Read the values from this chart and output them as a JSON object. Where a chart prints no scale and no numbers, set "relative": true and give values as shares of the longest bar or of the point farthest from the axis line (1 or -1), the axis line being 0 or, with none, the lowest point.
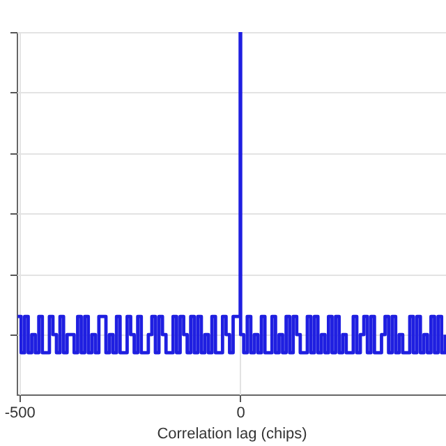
{
  "chart_data": {
    "type": "step",
    "xlabel": "Correlation lag (chips)",
    "relative": true,
    "grid": true,
    "xlim": [
      -506,
      466
    ],
    "xticks": [
      -500,
      0
    ],
    "x": [
      -504,
      -496,
      -488,
      -480,
      -472,
      -464,
      -456,
      -448,
      -440,
      -432,
      -424,
      -416,
      -408,
      -400,
      -392,
      -384,
      -376,
      -368,
      -360,
      -352,
      -344,
      -336,
      -328,
      -320,
      -312,
      -304,
      -296,
      -288,
      -280,
      -272,
      -264,
      -256,
      -248,
      -240,
      -232,
      -224,
      -216,
      -208,
      -200,
      -192,
      -184,
      -176,
      -168,
      -160,
      -152,
      -144,
      -136,
      -128,
      -120,
      -112,
      -104,
      -96,
      -88,
      -80,
      -72,
      -64,
      -56,
      -48,
      -40,
      -32,
      -24,
      -16,
      -8,
      0,
      1,
      8,
      16,
      24,
      32,
      40,
      48,
      56,
      64,
      72,
      80,
      88,
      96,
      104,
      112,
      120,
      128,
      136,
      144,
      152,
      160,
      168,
      176,
      184,
      192,
      200,
      208,
      216,
      224,
      232,
      240,
      248,
      256,
      264,
      272,
      280,
      288,
      296,
      304,
      312,
      320,
      328,
      336,
      344,
      352,
      360,
      368,
      376,
      384,
      392,
      400,
      408,
      416,
      424,
      432,
      440,
      448,
      456,
      464
    ],
    "series": [
      {
        "color": "#1f1fe0",
        "values": [
          0.06,
          -0.06,
          0.06,
          -0.06,
          0,
          -0.06,
          0.06,
          -0.06,
          -0.06,
          0.06,
          0,
          -0.06,
          0.06,
          -0.06,
          0,
          0,
          -0.06,
          0.06,
          -0.06,
          0.06,
          -0.06,
          0,
          -0.06,
          0.06,
          0.06,
          -0.06,
          0,
          -0.06,
          0.06,
          -0.06,
          -0.06,
          0.06,
          0,
          -0.06,
          0.06,
          -0.06,
          -0.06,
          0,
          0.06,
          -0.06,
          0.06,
          0,
          -0.06,
          -0.06,
          0.06,
          -0.06,
          0.06,
          0,
          -0.06,
          0.06,
          -0.06,
          0.06,
          -0.06,
          0,
          -0.06,
          0.06,
          -0.06,
          -0.06,
          0.06,
          0,
          -0.06,
          0.06,
          0.06,
          1,
          0,
          -0.06,
          0.06,
          -0.06,
          0,
          -0.06,
          0.06,
          -0.06,
          -0.06,
          0.06,
          -0.06,
          0,
          -0.06,
          0.06,
          -0.06,
          0.06,
          0,
          -0.06,
          -0.06,
          0.06,
          -0.06,
          0.06,
          -0.06,
          0,
          -0.06,
          0.06,
          -0.06,
          0.06,
          -0.06,
          0,
          -0.06,
          -0.06,
          0.06,
          -0.06,
          0,
          0.06,
          -0.06,
          0.06,
          -0.06,
          -0.06,
          0,
          0.06,
          -0.06,
          0.06,
          -0.06,
          0,
          -0.06,
          -0.06,
          0.06,
          -0.06,
          0.06,
          -0.06,
          0,
          -0.06,
          0.06,
          -0.06,
          0.06,
          -0.06,
          0
        ]
      }
    ]
  }
}
